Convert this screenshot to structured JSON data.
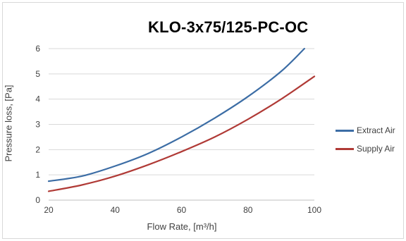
{
  "chart_data": {
    "type": "line",
    "title": "KLO-3x75/125-PC-OC",
    "xlabel": "Flow Rate, [m³/h]",
    "ylabel": "Pressure loss, [Pa]",
    "xlim": [
      20,
      100
    ],
    "ylim": [
      0,
      6
    ],
    "xticks": [
      20,
      40,
      60,
      80,
      100
    ],
    "yticks": [
      0,
      1,
      2,
      3,
      4,
      5,
      6
    ],
    "grid": "horizontal",
    "legend_position": "right",
    "series": [
      {
        "name": "Extract Air",
        "color": "#3c6da5",
        "x": [
          20,
          30,
          40,
          50,
          60,
          70,
          80,
          90,
          97
        ],
        "y": [
          0.75,
          0.95,
          1.35,
          1.85,
          2.5,
          3.25,
          4.1,
          5.1,
          6.0
        ]
      },
      {
        "name": "Supply Air",
        "color": "#b03a36",
        "x": [
          20,
          30,
          40,
          50,
          60,
          70,
          80,
          90,
          100
        ],
        "y": [
          0.35,
          0.6,
          0.95,
          1.4,
          1.92,
          2.5,
          3.2,
          4.0,
          4.9
        ]
      }
    ]
  }
}
